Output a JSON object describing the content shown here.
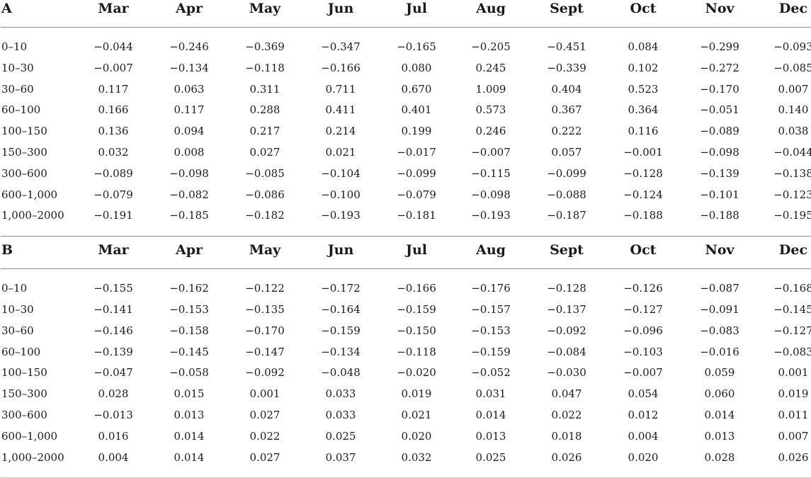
{
  "sections": [
    {
      "label": "A",
      "months": [
        "Mar",
        "Apr",
        "May",
        "Jun",
        "Jul",
        "Aug",
        "Sept",
        "Oct",
        "Nov",
        "Dec"
      ],
      "rows": [
        {
          "depth": "0–10",
          "values": [
            "−0.044",
            "−0.246",
            "−0.369",
            "−0.347",
            "−0.165",
            "−0.205",
            "−0.451",
            "0.084",
            "−0.299",
            "−0.093"
          ]
        },
        {
          "depth": "10–30",
          "values": [
            "−0.007",
            "−0.134",
            "−0.118",
            "−0.166",
            "0.080",
            "0.245",
            "−0.339",
            "0.102",
            "−0.272",
            "−0.085"
          ]
        },
        {
          "depth": "30–60",
          "values": [
            "0.117",
            "0.063",
            "0.311",
            "0.711",
            "0.670",
            "1.009",
            "0.404",
            "0.523",
            "−0.170",
            "0.007"
          ]
        },
        {
          "depth": "60–100",
          "values": [
            "0.166",
            "0.117",
            "0.288",
            "0.411",
            "0.401",
            "0.573",
            "0.367",
            "0.364",
            "−0.051",
            "0.140"
          ]
        },
        {
          "depth": "100–150",
          "values": [
            "0.136",
            "0.094",
            "0.217",
            "0.214",
            "0.199",
            "0.246",
            "0.222",
            "0.116",
            "−0.089",
            "0.038"
          ]
        },
        {
          "depth": "150–300",
          "values": [
            "0.032",
            "0.008",
            "0.027",
            "0.021",
            "−0.017",
            "−0.007",
            "0.057",
            "−0.001",
            "−0.098",
            "−0.044"
          ]
        },
        {
          "depth": "300–600",
          "values": [
            "−0.089",
            "−0.098",
            "−0.085",
            "−0.104",
            "−0.099",
            "−0.115",
            "−0.099",
            "−0.128",
            "−0.139",
            "−0.138"
          ]
        },
        {
          "depth": "600–1,000",
          "values": [
            "−0.079",
            "−0.082",
            "−0.086",
            "−0.100",
            "−0.079",
            "−0.098",
            "−0.088",
            "−0.124",
            "−0.101",
            "−0.123"
          ]
        },
        {
          "depth": "1,000–2000",
          "values": [
            "−0.191",
            "−0.185",
            "−0.182",
            "−0.193",
            "−0.181",
            "−0.193",
            "−0.187",
            "−0.188",
            "−0.188",
            "−0.195"
          ]
        }
      ]
    },
    {
      "label": "B",
      "months": [
        "Mar",
        "Apr",
        "May",
        "Jun",
        "Jul",
        "Aug",
        "Sept",
        "Oct",
        "Nov",
        "Dec"
      ],
      "rows": [
        {
          "depth": "0–10",
          "values": [
            "−0.155",
            "−0.162",
            "−0.122",
            "−0.172",
            "−0.166",
            "−0.176",
            "−0.128",
            "−0.126",
            "−0.087",
            "−0.168"
          ]
        },
        {
          "depth": "10–30",
          "values": [
            "−0.141",
            "−0.153",
            "−0.135",
            "−0.164",
            "−0.159",
            "−0.157",
            "−0.137",
            "−0.127",
            "−0.091",
            "−0.145"
          ]
        },
        {
          "depth": "30–60",
          "values": [
            "−0.146",
            "−0.158",
            "−0.170",
            "−0.159",
            "−0.150",
            "−0.153",
            "−0.092",
            "−0.096",
            "−0.083",
            "−0.127"
          ]
        },
        {
          "depth": "60–100",
          "values": [
            "−0.139",
            "−0.145",
            "−0.147",
            "−0.134",
            "−0.118",
            "−0.159",
            "−0.084",
            "−0.103",
            "−0.016",
            "−0.083"
          ]
        },
        {
          "depth": "100–150",
          "values": [
            "−0.047",
            "−0.058",
            "−0.092",
            "−0.048",
            "−0.020",
            "−0.052",
            "−0.030",
            "−0.007",
            "0.059",
            "0.001"
          ]
        },
        {
          "depth": "150–300",
          "values": [
            "0.028",
            "0.015",
            "0.001",
            "0.033",
            "0.019",
            "0.031",
            "0.047",
            "0.054",
            "0.060",
            "0.019"
          ]
        },
        {
          "depth": "300–600",
          "values": [
            "−0.013",
            "0.013",
            "0.027",
            "0.033",
            "0.021",
            "0.014",
            "0.022",
            "0.012",
            "0.014",
            "0.011"
          ]
        },
        {
          "depth": "600–1,000",
          "values": [
            "0.016",
            "0.014",
            "0.022",
            "0.025",
            "0.020",
            "0.013",
            "0.018",
            "0.004",
            "0.013",
            "0.007"
          ]
        },
        {
          "depth": "1,000–2000",
          "values": [
            "0.004",
            "0.014",
            "0.027",
            "0.037",
            "0.032",
            "0.025",
            "0.026",
            "0.020",
            "0.028",
            "0.026"
          ]
        }
      ]
    }
  ]
}
